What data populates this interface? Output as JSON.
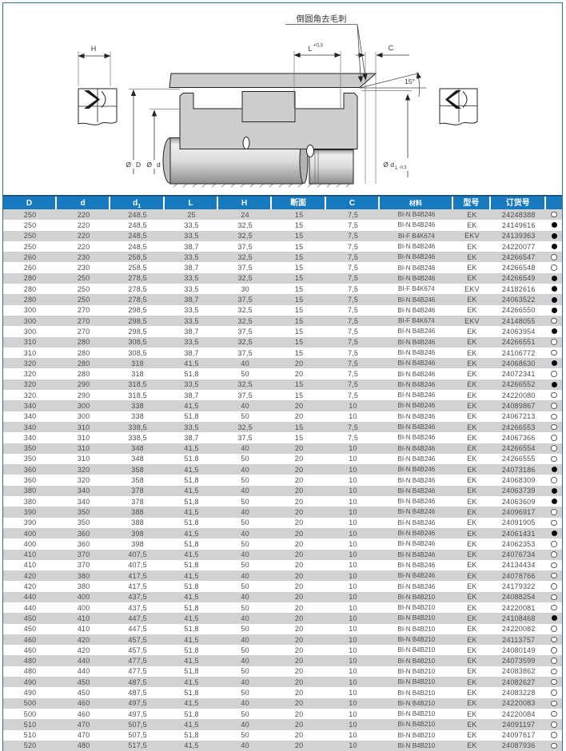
{
  "page": {
    "frame_color": "#2e7491",
    "header_color": "#187abe",
    "zebra_color": "#d2d2d2"
  },
  "diagram": {
    "deburr_note": "倒圆角去毛刺",
    "dim_l": "L",
    "dim_l_tol": "+0,3",
    "dim_c": "C",
    "dim_h": "H",
    "angle_label": "15°",
    "dia_outer_prefix": "Ø",
    "dia_outer": "D",
    "dia_rod_prefix": "Ø",
    "dia_rod": "d",
    "dia_d1": "Ø d",
    "dia_d1_sub": "1",
    "dia_d1_tol": "-0,3"
  },
  "table": {
    "columns": [
      {
        "label": "D"
      },
      {
        "label": "d"
      },
      {
        "label": "d",
        "sub": "1"
      },
      {
        "label": "L"
      },
      {
        "label": "H"
      },
      {
        "label": "断面"
      },
      {
        "label": "C"
      },
      {
        "label": "材料"
      },
      {
        "label": "型号"
      },
      {
        "label": "订货号"
      },
      {
        "label": ""
      }
    ],
    "rows": [
      {
        "c": [
          "250",
          "220",
          "248,5",
          "25",
          "24",
          "15",
          "7,5",
          "BI-N B4B246",
          "EK",
          "24248388"
        ],
        "dot": "hollow"
      },
      {
        "c": [
          "250",
          "220",
          "248,5",
          "33,5",
          "32,5",
          "15",
          "7,5",
          "BI-N B4B246",
          "EK",
          "24149616"
        ],
        "dot": "filled"
      },
      {
        "c": [
          "250",
          "220",
          "248,5",
          "33,5",
          "32,5",
          "15",
          "7,5",
          "BI-F B4K674",
          "EKV",
          "24139363"
        ],
        "dot": "filled"
      },
      {
        "c": [
          "250",
          "220",
          "248,5",
          "38,7",
          "37,5",
          "15",
          "7,5",
          "BI-N B4B246",
          "EK",
          "24220077"
        ],
        "dot": "filled"
      },
      {
        "c": [
          "260",
          "230",
          "258,5",
          "33,5",
          "32,5",
          "15",
          "7,5",
          "BI-N B4B246",
          "EK",
          "24266547"
        ],
        "dot": "hollow"
      },
      {
        "c": [
          "260",
          "230",
          "258,5",
          "38,7",
          "37,5",
          "15",
          "7,5",
          "BI-N B4B246",
          "EK",
          "24266548"
        ],
        "dot": "hollow"
      },
      {
        "c": [
          "280",
          "250",
          "278,5",
          "33,5",
          "32,5",
          "15",
          "7,5",
          "BI-N B4B246",
          "EK",
          "24266549"
        ],
        "dot": "filled"
      },
      {
        "c": [
          "280",
          "250",
          "278,5",
          "33,5",
          "30",
          "15",
          "7,5",
          "BI-F B4K674",
          "EKV",
          "24182616"
        ],
        "dot": "filled"
      },
      {
        "c": [
          "280",
          "250",
          "278,5",
          "38,7",
          "37,5",
          "15",
          "7,5",
          "BI-N B4B246",
          "EK",
          "24063522"
        ],
        "dot": "filled"
      },
      {
        "c": [
          "300",
          "270",
          "298,5",
          "33,5",
          "32,5",
          "15",
          "7,5",
          "BI-N B4B246",
          "EK",
          "24266550"
        ],
        "dot": "filled"
      },
      {
        "c": [
          "300",
          "270",
          "298,5",
          "33,5",
          "32,5",
          "15",
          "7,5",
          "BI-F B4K674",
          "EKV",
          "24148055"
        ],
        "dot": "hollow"
      },
      {
        "c": [
          "300",
          "270",
          "298,5",
          "38,7",
          "37,5",
          "15",
          "7,5",
          "BI-N B4B246",
          "EK",
          "24063954"
        ],
        "dot": "filled"
      },
      {
        "c": [
          "310",
          "280",
          "308,5",
          "33,5",
          "32,5",
          "15",
          "7,5",
          "BI-N B4B246",
          "EK",
          "24266551"
        ],
        "dot": "hollow"
      },
      {
        "c": [
          "310",
          "280",
          "308,5",
          "38,7",
          "37,5",
          "15",
          "7,5",
          "BI-N B4B246",
          "EK",
          "24106772"
        ],
        "dot": "hollow"
      },
      {
        "c": [
          "320",
          "280",
          "318",
          "41,5",
          "40",
          "20",
          "7,5",
          "BI-N B4B246",
          "EK",
          "24068630"
        ],
        "dot": "filled"
      },
      {
        "c": [
          "320",
          "280",
          "318",
          "51,8",
          "50",
          "20",
          "7,5",
          "BI-N B4B246",
          "EK",
          "24072341"
        ],
        "dot": "hollow"
      },
      {
        "c": [
          "320",
          "290",
          "318,5",
          "33,5",
          "32,5",
          "15",
          "7,5",
          "BI-N B4B246",
          "EK",
          "24266552"
        ],
        "dot": "filled"
      },
      {
        "c": [
          "320",
          "290",
          "318,5",
          "38,7",
          "37,5",
          "15",
          "7,5",
          "BI-N B4B246",
          "EK",
          "24220080"
        ],
        "dot": "hollow"
      },
      {
        "c": [
          "340",
          "300",
          "338",
          "41,5",
          "40",
          "20",
          "10",
          "BI-N B4B246",
          "EK",
          "24089867"
        ],
        "dot": "hollow"
      },
      {
        "c": [
          "340",
          "300",
          "338",
          "51,8",
          "50",
          "20",
          "10",
          "BI-N B4B246",
          "EK",
          "24067213"
        ],
        "dot": "hollow"
      },
      {
        "c": [
          "340",
          "310",
          "338,5",
          "33,5",
          "32,5",
          "15",
          "7,5",
          "BI-N B4B246",
          "EK",
          "24266553"
        ],
        "dot": "hollow"
      },
      {
        "c": [
          "340",
          "310",
          "338,5",
          "38,7",
          "37,5",
          "15",
          "7,5",
          "BI-N B4B246",
          "EK",
          "24067366"
        ],
        "dot": "hollow"
      },
      {
        "c": [
          "350",
          "310",
          "348",
          "41,5",
          "40",
          "20",
          "10",
          "BI-N B4B246",
          "EK",
          "24266554"
        ],
        "dot": "hollow"
      },
      {
        "c": [
          "350",
          "310",
          "348",
          "51,8",
          "50",
          "20",
          "10",
          "BI-N B4B246",
          "EK",
          "24266555"
        ],
        "dot": "hollow"
      },
      {
        "c": [
          "360",
          "320",
          "358",
          "41,5",
          "40",
          "20",
          "10",
          "BI-N B4B246",
          "EK",
          "24073186"
        ],
        "dot": "filled"
      },
      {
        "c": [
          "360",
          "320",
          "358",
          "51,8",
          "50",
          "20",
          "10",
          "BI-N B4B246",
          "EK",
          "24068309"
        ],
        "dot": "hollow"
      },
      {
        "c": [
          "380",
          "340",
          "378",
          "41,5",
          "40",
          "20",
          "10",
          "BI-N B4B246",
          "EK",
          "24063739"
        ],
        "dot": "filled"
      },
      {
        "c": [
          "380",
          "340",
          "378",
          "51,8",
          "50",
          "20",
          "10",
          "BI-N B4B246",
          "EK",
          "24063609"
        ],
        "dot": "filled"
      },
      {
        "c": [
          "390",
          "350",
          "388",
          "41,5",
          "40",
          "20",
          "10",
          "BI-N B4B246",
          "EK",
          "24096917"
        ],
        "dot": "hollow"
      },
      {
        "c": [
          "390",
          "350",
          "388",
          "51,8",
          "50",
          "20",
          "10",
          "BI-N B4B246",
          "EK",
          "24091905"
        ],
        "dot": "hollow"
      },
      {
        "c": [
          "400",
          "360",
          "398",
          "41,5",
          "40",
          "20",
          "10",
          "BI-N B4B246",
          "EK",
          "24061431"
        ],
        "dot": "filled"
      },
      {
        "c": [
          "400",
          "360",
          "398",
          "51,8",
          "50",
          "20",
          "10",
          "BI-N B4B246",
          "EK",
          "24062353"
        ],
        "dot": "hollow"
      },
      {
        "c": [
          "410",
          "370",
          "407,5",
          "41,5",
          "40",
          "20",
          "10",
          "BI-N B4B246",
          "EK",
          "24076734"
        ],
        "dot": "hollow"
      },
      {
        "c": [
          "410",
          "370",
          "407,5",
          "51,8",
          "50",
          "20",
          "10",
          "BI-N B4B246",
          "EK",
          "24134434"
        ],
        "dot": "hollow"
      },
      {
        "c": [
          "420",
          "380",
          "417,5",
          "41,5",
          "40",
          "20",
          "10",
          "BI-N B4B246",
          "EK",
          "24078766"
        ],
        "dot": "hollow"
      },
      {
        "c": [
          "420",
          "380",
          "417,5",
          "51,8",
          "50",
          "20",
          "10",
          "BI-N B4B246",
          "EK",
          "24179322"
        ],
        "dot": "hollow"
      },
      {
        "c": [
          "440",
          "400",
          "437,5",
          "41,5",
          "40",
          "20",
          "10",
          "BI-N B4B210",
          "EK",
          "24088254"
        ],
        "dot": "hollow"
      },
      {
        "c": [
          "440",
          "400",
          "437,5",
          "51,8",
          "50",
          "20",
          "10",
          "BI-N B4B210",
          "EK",
          "24220081"
        ],
        "dot": "hollow"
      },
      {
        "c": [
          "450",
          "410",
          "447,5",
          "41,5",
          "40",
          "20",
          "10",
          "BI-N B4B210",
          "EK",
          "24108468"
        ],
        "dot": "filled"
      },
      {
        "c": [
          "450",
          "410",
          "447,5",
          "51,8",
          "50",
          "20",
          "10",
          "BI-N B4B210",
          "EK",
          "24220082"
        ],
        "dot": "hollow"
      },
      {
        "c": [
          "460",
          "420",
          "457,5",
          "41,5",
          "40",
          "20",
          "10",
          "BI-N B4B210",
          "EK",
          "24113757"
        ],
        "dot": "hollow"
      },
      {
        "c": [
          "460",
          "420",
          "457,5",
          "51,8",
          "50",
          "20",
          "10",
          "BI-N B4B210",
          "EK",
          "24080149"
        ],
        "dot": "hollow"
      },
      {
        "c": [
          "480",
          "440",
          "477,5",
          "41,5",
          "40",
          "20",
          "10",
          "BI-N B4B210",
          "EK",
          "24073599"
        ],
        "dot": "hollow"
      },
      {
        "c": [
          "480",
          "440",
          "477,5",
          "51,8",
          "50",
          "20",
          "10",
          "BI-N B4B210",
          "EK",
          "24083862"
        ],
        "dot": "hollow"
      },
      {
        "c": [
          "490",
          "450",
          "487,5",
          "41,5",
          "40",
          "20",
          "10",
          "BI-N B4B210",
          "EK",
          "24082627"
        ],
        "dot": "hollow"
      },
      {
        "c": [
          "490",
          "450",
          "487,5",
          "51,8",
          "50",
          "20",
          "10",
          "BI-N B4B210",
          "EK",
          "24083228"
        ],
        "dot": "hollow"
      },
      {
        "c": [
          "500",
          "460",
          "497,5",
          "41,5",
          "40",
          "20",
          "10",
          "BI-N B4B210",
          "EK",
          "24220083"
        ],
        "dot": "hollow"
      },
      {
        "c": [
          "500",
          "460",
          "497,5",
          "51,8",
          "50",
          "20",
          "10",
          "BI-N B4B210",
          "EK",
          "24220084"
        ],
        "dot": "hollow"
      },
      {
        "c": [
          "510",
          "470",
          "507,5",
          "41,5",
          "40",
          "20",
          "10",
          "BI-N B4B210",
          "EK",
          "24091197"
        ],
        "dot": "hollow"
      },
      {
        "c": [
          "510",
          "470",
          "507,5",
          "51,8",
          "50",
          "20",
          "10",
          "BI-N B4B210",
          "EK",
          "24097617"
        ],
        "dot": "hollow"
      },
      {
        "c": [
          "520",
          "480",
          "517,5",
          "41,5",
          "40",
          "20",
          "10",
          "BI-N B4B210",
          "EK",
          "24087936"
        ],
        "dot": "hollow"
      }
    ]
  }
}
